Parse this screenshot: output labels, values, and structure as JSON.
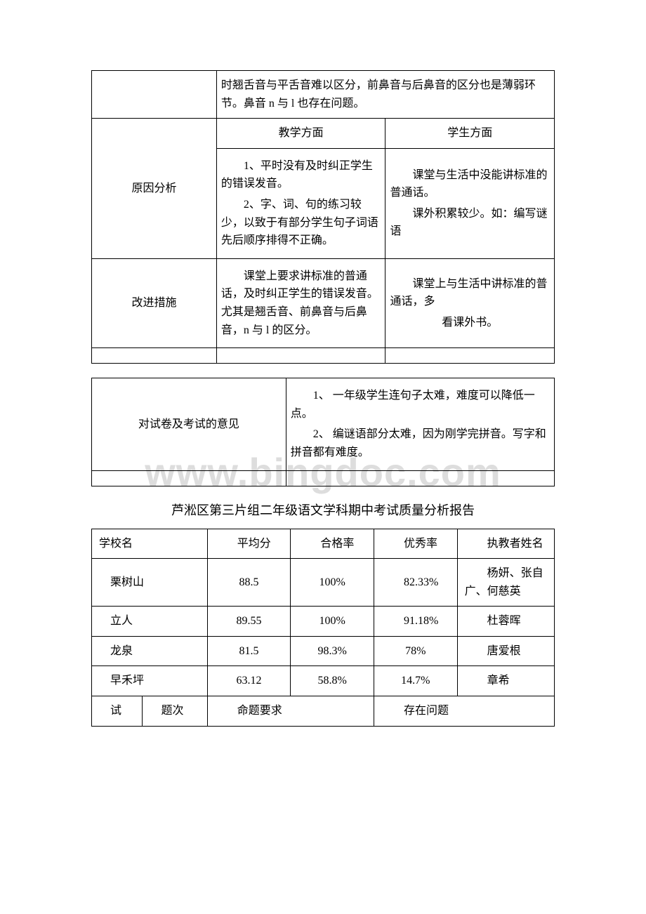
{
  "table1": {
    "top_merged": "时翘舌音与平舌音难以区分，前鼻音与后鼻音的区分也是薄弱环节。鼻音 n 与 l 也存在问题。",
    "row_cause": {
      "label": "原因分析",
      "teaching_header": "教学方面",
      "student_header": "学生方面",
      "teaching_p1": "1、平时没有及时纠正学生的错误发音。",
      "teaching_p2": "2、字、词、句的练习较少，以致于有部分学生句子词语先后顺序排得不正确。",
      "student_p1": "课堂与生活中没能讲标准的普通话。",
      "student_p2": "课外积累较少。如：编写谜语"
    },
    "row_improve": {
      "label": "改进措施",
      "teaching": "课堂上要求讲标准的普通话，及时纠正学生的错误发音。尤其是翘舌音、前鼻音与后鼻音，n 与 l 的区分。",
      "student_p1": "课堂上与生活中讲标准的普通话，多",
      "student_p2": "看课外书。"
    }
  },
  "table2": {
    "left": "对试卷及考试的意见",
    "right_p1": "1、 一年级学生连句子太难，难度可以降低一点。",
    "right_p2": "2、 编谜语部分太难，因为刚学完拼音。写字和拼音都有难度。"
  },
  "title2": "芦淞区第三片组二年级语文学科期中考试质量分析报告",
  "table3": {
    "headers": {
      "school": "学校名",
      "avg": "平均分",
      "pass": "合格率",
      "excellent": "优秀率",
      "teacher": "执教者姓名"
    },
    "rows": [
      {
        "school": "栗树山",
        "avg": "88.5",
        "pass": "100%",
        "excellent": "82.33%",
        "teacher": "杨妍、张自广、何慈英"
      },
      {
        "school": "立人",
        "avg": "89.55",
        "pass": "100%",
        "excellent": "91.18%",
        "teacher": "杜蓉晖"
      },
      {
        "school": "龙泉",
        "avg": "81.5",
        "pass": "98.3%",
        "excellent": "78%",
        "teacher": "唐爱根"
      },
      {
        "school": "早禾坪",
        "avg": "63.12",
        "pass": "58.8%",
        "excellent": "14.7%",
        "teacher": "章希"
      }
    ],
    "bottom": {
      "c1": "试",
      "c2": "题次",
      "c3": "命题要求",
      "c4": "存在问题"
    }
  },
  "watermark": "www.bingdoc.com"
}
